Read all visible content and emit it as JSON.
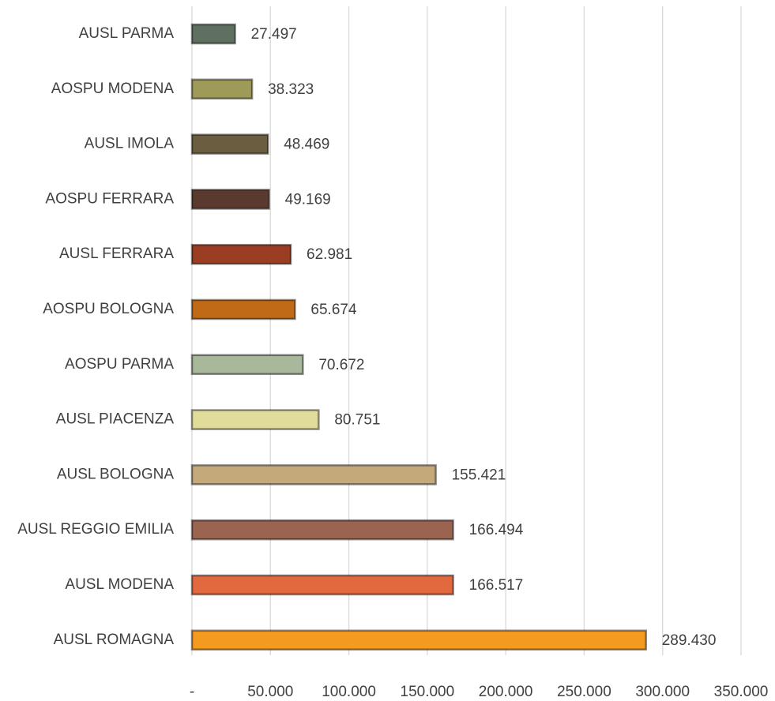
{
  "chart_data": {
    "type": "barh",
    "categories": [
      "AUSL PARMA",
      "AOSPU MODENA",
      "AUSL IMOLA",
      "AOSPU FERRARA",
      "AUSL FERRARA",
      "AOSPU BOLOGNA",
      "AOSPU PARMA",
      "AUSL PIACENZA",
      "AUSL BOLOGNA",
      "AUSL REGGIO EMILIA",
      "AUSL MODENA",
      "AUSL ROMAGNA"
    ],
    "values": [
      27497,
      38323,
      48469,
      49169,
      62981,
      65674,
      70672,
      80751,
      155421,
      166494,
      166517,
      289430
    ],
    "value_labels": [
      "27.497",
      "38.323",
      "48.469",
      "49.169",
      "62.981",
      "65.674",
      "70.672",
      "80.751",
      "155.421",
      "166.494",
      "166.517",
      "289.430"
    ],
    "colors": [
      "#5f7060",
      "#9e9a58",
      "#6b5d40",
      "#5a3a2e",
      "#9a3d22",
      "#c06a18",
      "#a8b89a",
      "#e2dc9a",
      "#c4aa7a",
      "#9a6450",
      "#e2683e",
      "#f49a1e"
    ],
    "xlim": [
      0,
      350000
    ],
    "xticks": [
      {
        "value": 0,
        "label": "-"
      },
      {
        "value": 50000,
        "label": "50.000"
      },
      {
        "value": 100000,
        "label": "100.000"
      },
      {
        "value": 150000,
        "label": "150.000"
      },
      {
        "value": 200000,
        "label": "200.000"
      },
      {
        "value": 250000,
        "label": "250.000"
      },
      {
        "value": 300000,
        "label": "300.000"
      },
      {
        "value": 350000,
        "label": "350.000"
      }
    ],
    "grid": true
  }
}
